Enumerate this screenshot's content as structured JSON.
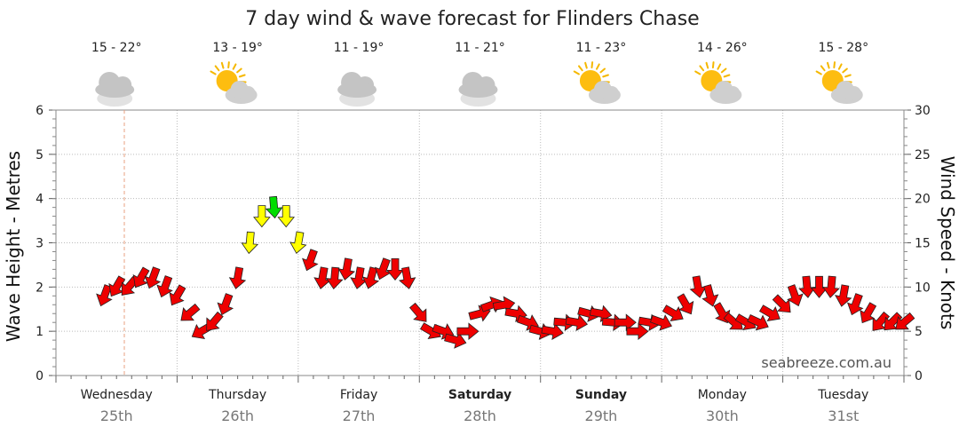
{
  "chart_data": {
    "type": "line",
    "title": "7 day wind & wave forecast for Flinders Chase",
    "ylabel_left": "Wave Height - Metres",
    "ylabel_right": "Wind Speed - Knots",
    "ylim_left": [
      0,
      6
    ],
    "ylim_right": [
      0,
      30
    ],
    "yticks_left": [
      "0",
      "1",
      "2",
      "3",
      "4",
      "5",
      "6"
    ],
    "yticks_right": [
      "0",
      "5",
      "10",
      "15",
      "20",
      "25",
      "30"
    ],
    "grid": true,
    "credit": "seabreeze.com.au",
    "days": [
      {
        "name": "Wednesday",
        "date": "25th",
        "bold": false,
        "temp": "15 - 22°",
        "icon": "cloudy-icon"
      },
      {
        "name": "Thursday",
        "date": "26th",
        "bold": false,
        "temp": "13 - 19°",
        "icon": "partly-sunny-icon"
      },
      {
        "name": "Friday",
        "date": "27th",
        "bold": false,
        "temp": "11 - 19°",
        "icon": "cloudy-icon"
      },
      {
        "name": "Saturday",
        "date": "28th",
        "bold": true,
        "temp": "11 - 21°",
        "icon": "cloudy-icon"
      },
      {
        "name": "Sunday",
        "date": "29th",
        "bold": true,
        "temp": "11 - 23°",
        "icon": "partly-sunny-icon"
      },
      {
        "name": "Monday",
        "date": "30th",
        "bold": false,
        "temp": "14 - 26°",
        "icon": "partly-sunny-icon"
      },
      {
        "name": "Tuesday",
        "date": "31st",
        "bold": false,
        "temp": "15 - 28°",
        "icon": "partly-sunny-icon"
      }
    ],
    "colors": {
      "light": "#00dd00",
      "moderate": "#ffff00",
      "strong": "#ee0000",
      "grid": "#bbbbbb",
      "now_line": "#e8a080"
    },
    "wind_series": {
      "name": "",
      "unit": "knots",
      "day_offset": [
        0.4,
        0.5,
        0.6,
        0.7,
        0.8,
        0.9,
        1.0,
        1.1,
        1.2,
        1.3,
        1.4,
        1.5,
        1.6,
        1.7,
        1.8,
        1.9,
        2.0,
        2.1,
        2.2,
        2.3,
        2.4,
        2.5,
        2.6,
        2.7,
        2.8,
        2.9,
        3.0,
        3.1,
        3.2,
        3.3,
        3.4,
        3.5,
        3.6,
        3.7,
        3.8,
        3.9,
        4.0,
        4.1,
        4.2,
        4.3,
        4.4,
        4.5,
        4.6,
        4.7,
        4.8,
        4.9,
        5.0,
        5.1,
        5.2,
        5.3,
        5.4,
        5.5,
        5.6,
        5.7,
        5.8,
        5.9,
        6.0,
        6.1,
        6.2,
        6.3,
        6.4,
        6.5,
        6.6,
        6.7,
        6.8,
        6.9,
        7.0
      ],
      "speed": [
        9,
        10,
        10,
        11,
        11,
        10,
        9,
        7,
        5,
        6,
        8,
        11,
        15,
        18,
        19,
        18,
        15,
        13,
        11,
        11,
        12,
        11,
        11,
        12,
        12,
        11,
        7,
        5,
        5,
        4,
        5,
        7,
        8,
        8,
        7,
        6,
        5,
        5,
        6,
        6,
        7,
        7,
        6,
        6,
        5,
        6,
        6,
        7,
        8,
        10,
        9,
        7,
        6,
        6,
        6,
        7,
        8,
        9,
        10,
        10,
        10,
        9,
        8,
        7,
        6,
        6,
        6
      ],
      "direction_deg": [
        200,
        210,
        220,
        210,
        200,
        200,
        210,
        230,
        240,
        220,
        200,
        190,
        185,
        180,
        175,
        180,
        190,
        200,
        190,
        185,
        190,
        190,
        195,
        200,
        180,
        170,
        140,
        120,
        110,
        105,
        90,
        75,
        70,
        80,
        100,
        110,
        105,
        100,
        95,
        100,
        105,
        100,
        95,
        90,
        90,
        100,
        110,
        120,
        150,
        170,
        165,
        150,
        130,
        120,
        115,
        120,
        135,
        160,
        175,
        180,
        185,
        190,
        200,
        210,
        220,
        225,
        230
      ]
    }
  }
}
